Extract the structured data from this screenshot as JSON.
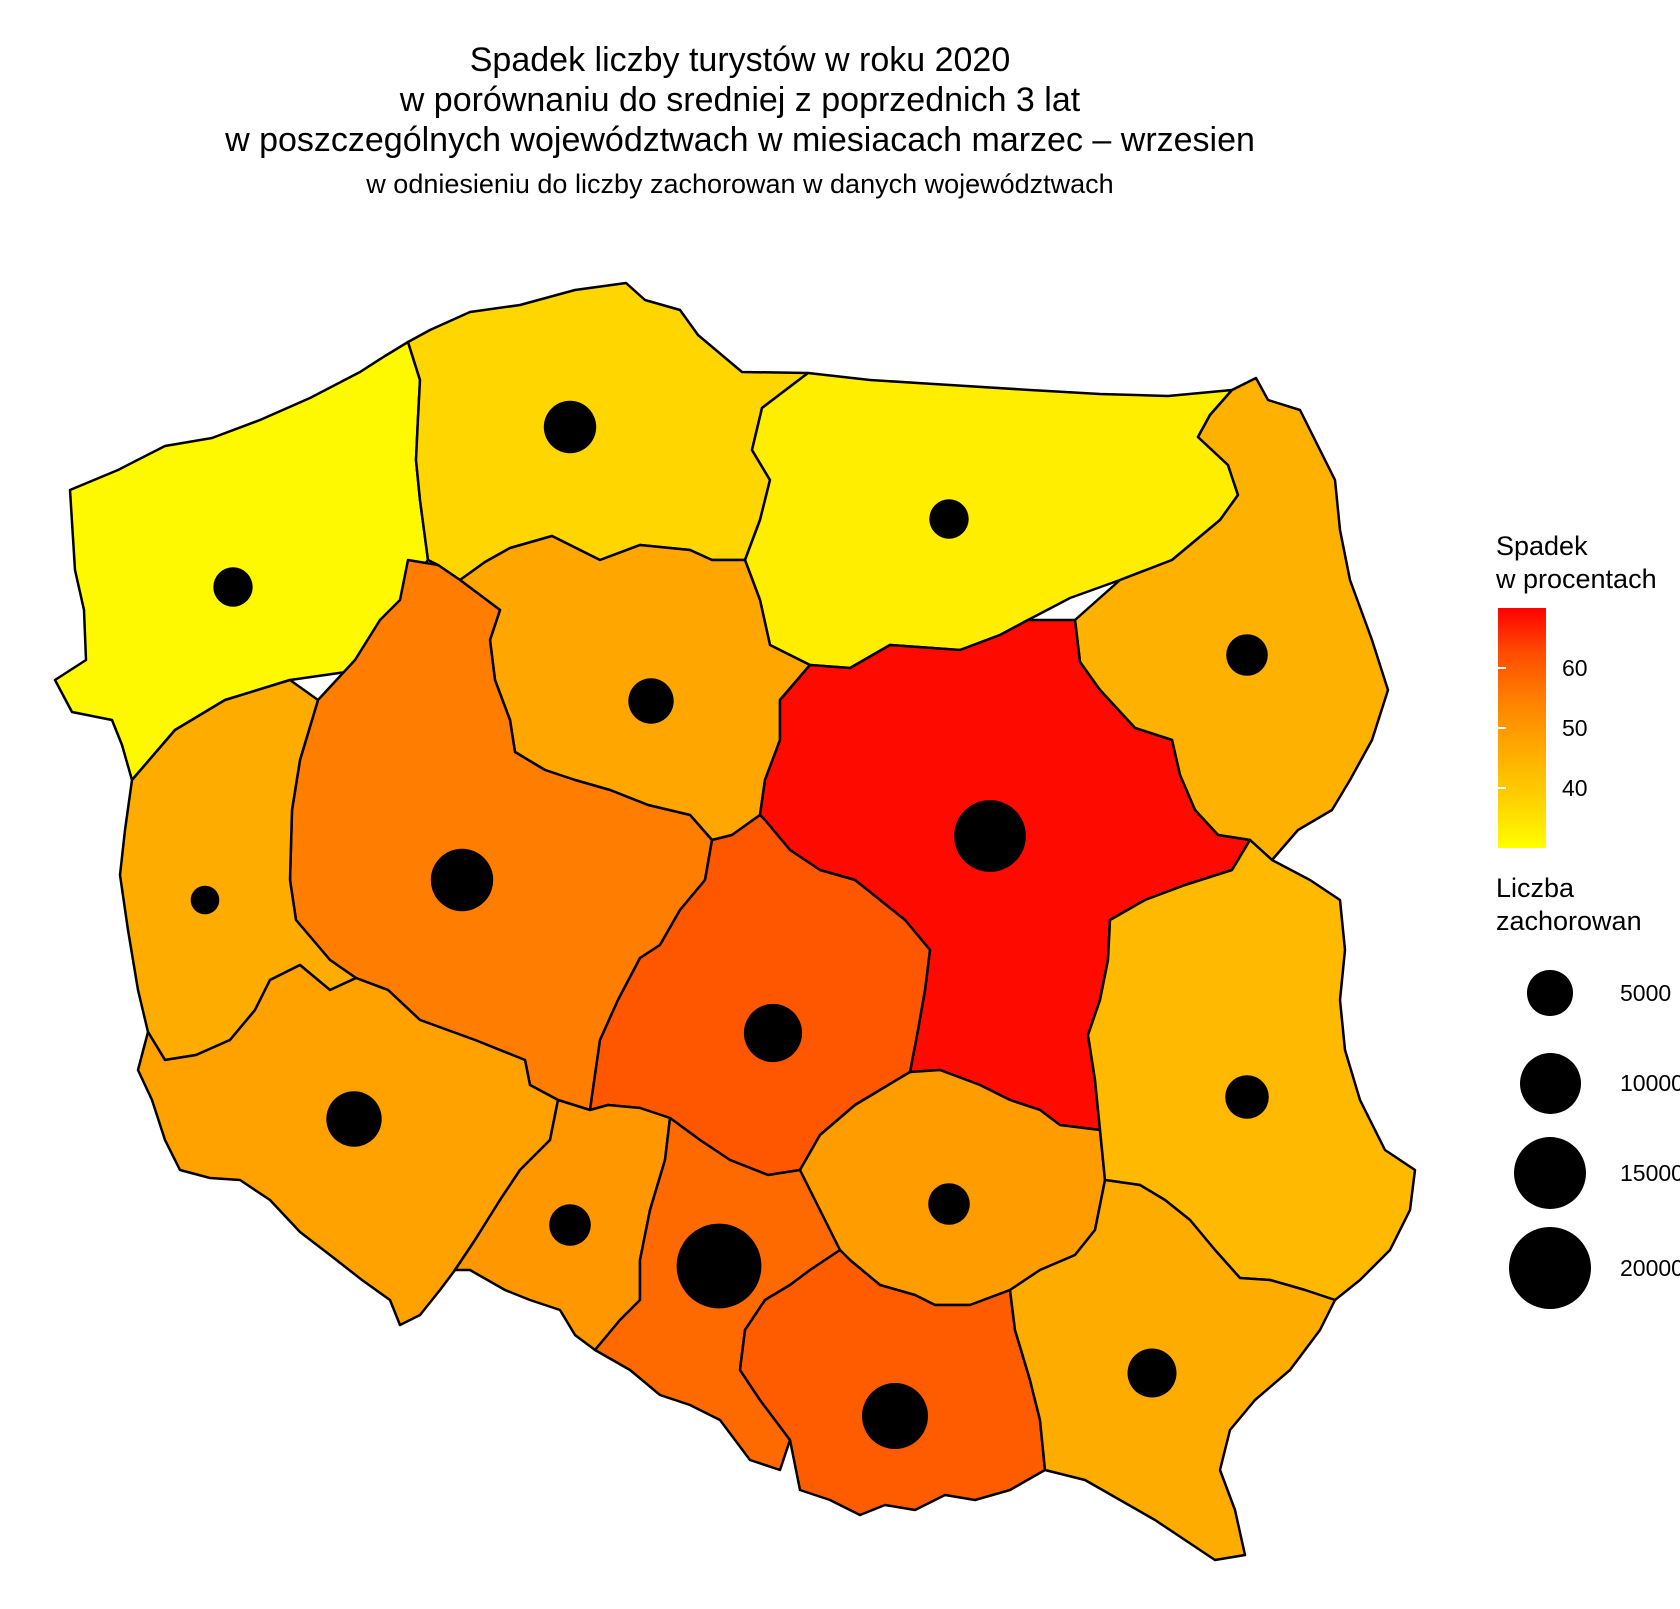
{
  "title": {
    "lines": [
      "Spadek liczby turystów w roku 2020",
      "w porównaniu do sredniej z poprzednich 3 lat",
      "w poszczególnych województwach w miesiacach marzec – wrzesien"
    ],
    "subtitle": "w odniesieniu do liczby zachorowan w danych województwach"
  },
  "legend": {
    "color": {
      "title_line1": "Spadek",
      "title_line2": "w procentach",
      "min": 30,
      "max": 70,
      "ticks": [
        "40",
        "50",
        "60"
      ]
    },
    "size": {
      "title_line1": "Liczba",
      "title_line2": "zachorowan",
      "entries": [
        {
          "value": 5000,
          "label": "5000"
        },
        {
          "value": 10000,
          "label": "10000"
        },
        {
          "value": 15000,
          "label": "15000"
        },
        {
          "value": 20000,
          "label": "20000"
        }
      ]
    }
  },
  "chart_data": {
    "type": "choropleth_map",
    "color_scale": {
      "low": "#ffff00",
      "high": "#ff0000",
      "domain": [
        30,
        70
      ]
    },
    "regions": [
      {
        "id": "zachodniopomorskie",
        "spadek": 31,
        "zachorowania": 3500
      },
      {
        "id": "pomorskie",
        "spadek": 37,
        "zachorowania": 7000
      },
      {
        "id": "warminsko-mazurskie",
        "spadek": 33,
        "zachorowania": 3500
      },
      {
        "id": "podlaskie",
        "spadek": 45,
        "zachorowania": 4000
      },
      {
        "id": "kujawsko-pomorskie",
        "spadek": 47,
        "zachorowania": 5000
      },
      {
        "id": "wielkopolskie",
        "spadek": 55,
        "zachorowania": 10500
      },
      {
        "id": "lubuskie",
        "spadek": 46,
        "zachorowania": 1500
      },
      {
        "id": "mazowieckie",
        "spadek": 69,
        "zachorowania": 14500
      },
      {
        "id": "lodzkie",
        "spadek": 61,
        "zachorowania": 9000
      },
      {
        "id": "dolnoslaskie",
        "spadek": 48,
        "zachorowania": 8000
      },
      {
        "id": "opolskie",
        "spadek": 50,
        "zachorowania": 4000
      },
      {
        "id": "slaskie",
        "spadek": 58,
        "zachorowania": 21000
      },
      {
        "id": "swietokrzyskie",
        "spadek": 49,
        "zachorowania": 4000
      },
      {
        "id": "lubelskie",
        "spadek": 43,
        "zachorowania": 4500
      },
      {
        "id": "malopolskie",
        "spadek": 60,
        "zachorowania": 12000
      },
      {
        "id": "podkarpackie",
        "spadek": 46,
        "zachorowania": 6000
      }
    ]
  }
}
